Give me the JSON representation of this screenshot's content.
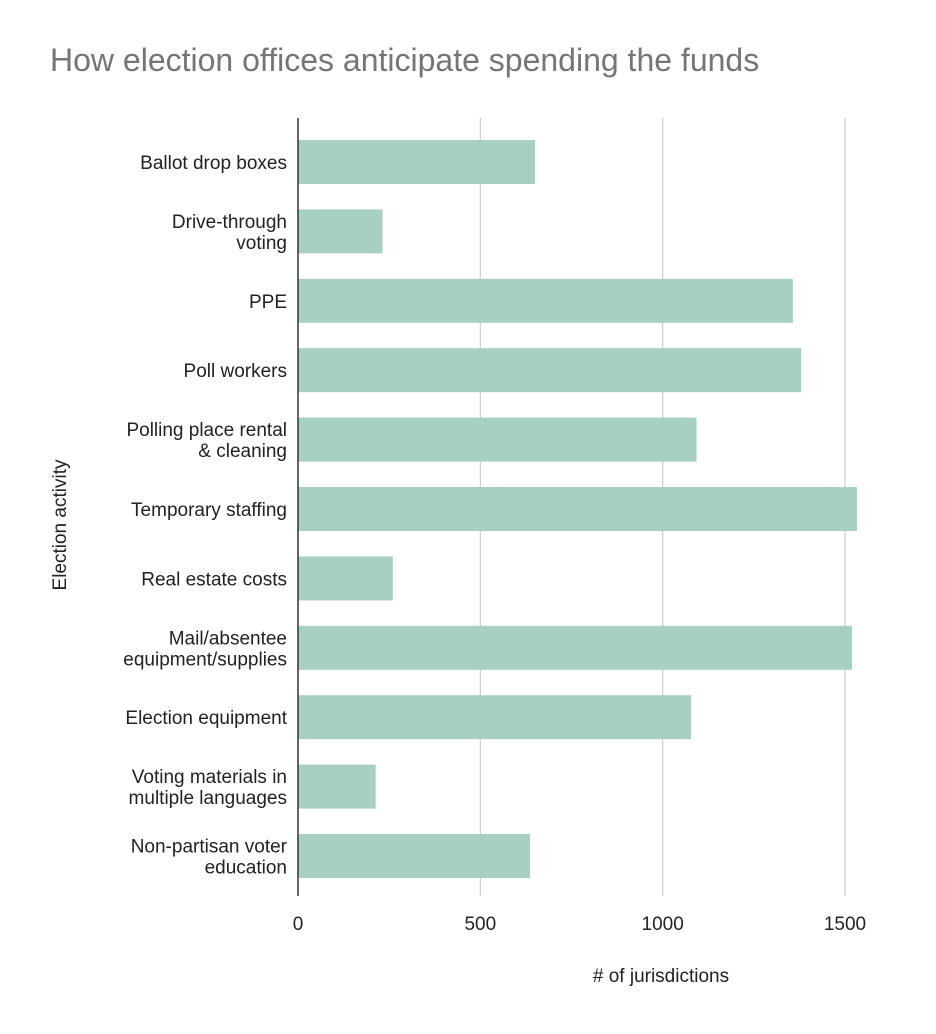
{
  "chart_data": {
    "type": "bar",
    "orientation": "horizontal",
    "title": "How election offices anticipate spending the funds",
    "xlabel": "# of jurisdictions",
    "ylabel": "Election activity",
    "categories": [
      [
        "Ballot drop boxes"
      ],
      [
        "Drive-through",
        "voting"
      ],
      [
        "PPE"
      ],
      [
        "Poll workers"
      ],
      [
        "Polling place rental",
        "& cleaning"
      ],
      [
        "Temporary staffing"
      ],
      [
        "Real estate costs"
      ],
      [
        "Mail/absentee",
        "equipment/supplies"
      ],
      [
        "Election equipment"
      ],
      [
        "Voting materials in",
        "multiple languages"
      ],
      [
        "Non-partisan voter",
        "education"
      ]
    ],
    "values": [
      650,
      232,
      1357,
      1380,
      1093,
      1533,
      260,
      1519,
      1078,
      213,
      636
    ],
    "xlim": [
      0,
      1500
    ],
    "xticks": [
      0,
      500,
      1000,
      1500
    ],
    "grid": true,
    "legend": "none",
    "colors": {
      "bar": "#a8d0c2",
      "grid": "#cccccc",
      "axis": "#333333",
      "title": "#757575"
    }
  }
}
